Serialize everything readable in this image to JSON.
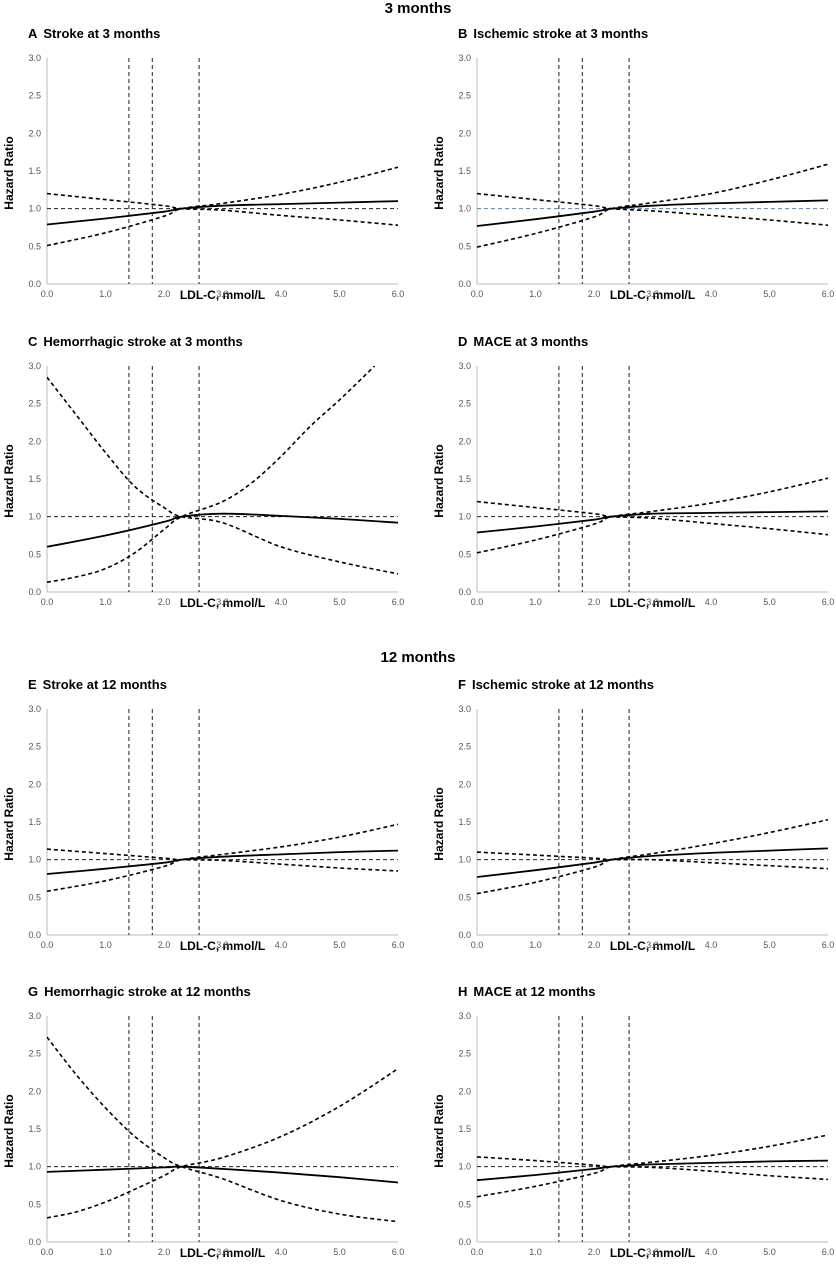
{
  "section_titles": {
    "first": "3 months",
    "second": "12 months"
  },
  "chart_data": [
    {
      "type": "line",
      "panel": "A",
      "title": "Stroke at 3 months",
      "xlabel": "LDL-C, mmol/L",
      "ylabel": "Hazard Ratio",
      "xlim": [
        0,
        6
      ],
      "ylim": [
        0,
        3
      ],
      "xticks": [
        "0.0",
        "1.0",
        "2.0",
        "3.0",
        "4.0",
        "5.0",
        "6.0"
      ],
      "yticks": [
        "0.0",
        "0.5",
        "1.0",
        "1.5",
        "2.0",
        "2.5",
        "3.0"
      ],
      "reference_lines": {
        "vertical": [
          1.4,
          1.8,
          2.6
        ],
        "horizontal": 1.0
      },
      "series": [
        {
          "style": "solid",
          "x": [
            0,
            1,
            2,
            2.3,
            3,
            4,
            5,
            6
          ],
          "y": [
            0.79,
            0.87,
            0.96,
            1.0,
            1.04,
            1.06,
            1.08,
            1.1
          ]
        },
        {
          "style": "dashed",
          "x": [
            0,
            1,
            2,
            2.3,
            3,
            4,
            5,
            6
          ],
          "y": [
            0.51,
            0.68,
            0.9,
            1.0,
            1.07,
            1.19,
            1.35,
            1.55
          ]
        },
        {
          "style": "dashed",
          "x": [
            0,
            1,
            2,
            2.3,
            3,
            4,
            5,
            6
          ],
          "y": [
            1.2,
            1.12,
            1.04,
            1.0,
            0.98,
            0.91,
            0.85,
            0.78
          ]
        }
      ]
    },
    {
      "type": "line",
      "panel": "B",
      "title": "Ischemic stroke at 3 months",
      "xlabel": "LDL-C, mmol/L",
      "ylabel": "Hazard Ratio",
      "xlim": [
        0,
        6
      ],
      "ylim": [
        0,
        3
      ],
      "xticks": [
        "0.0",
        "1.0",
        "2.0",
        "3.0",
        "4.0",
        "5.0",
        "6.0"
      ],
      "yticks": [
        "0.0",
        "0.5",
        "1.0",
        "1.5",
        "2.0",
        "2.5",
        "3.0"
      ],
      "reference_lines": {
        "vertical": [
          1.4,
          1.8,
          2.6
        ],
        "horizontal": 1.0,
        "horizontal_color": "#5b7fb3"
      },
      "series": [
        {
          "style": "solid",
          "x": [
            0,
            1,
            2,
            2.3,
            3,
            4,
            5,
            6
          ],
          "y": [
            0.77,
            0.86,
            0.96,
            1.0,
            1.04,
            1.07,
            1.09,
            1.11
          ]
        },
        {
          "style": "dashed",
          "x": [
            0,
            1,
            2,
            2.3,
            3,
            4,
            5,
            6
          ],
          "y": [
            0.49,
            0.67,
            0.89,
            1.0,
            1.08,
            1.2,
            1.38,
            1.59
          ]
        },
        {
          "style": "dashed",
          "x": [
            0,
            1,
            2,
            2.3,
            3,
            4,
            5,
            6
          ],
          "y": [
            1.2,
            1.12,
            1.04,
            1.0,
            0.97,
            0.91,
            0.85,
            0.78
          ]
        }
      ]
    },
    {
      "type": "line",
      "panel": "C",
      "title": "Hemorrhagic stroke at 3 months",
      "xlabel": "LDL-C, mmol/L",
      "ylabel": "Hazard Ratio",
      "xlim": [
        0,
        6
      ],
      "ylim": [
        0,
        3
      ],
      "xticks": [
        "0.0",
        "1.0",
        "2.0",
        "3.0",
        "4.0",
        "5.0",
        "6.0"
      ],
      "yticks": [
        "0.0",
        "0.5",
        "1.0",
        "1.5",
        "2.0",
        "2.5",
        "3.0"
      ],
      "reference_lines": {
        "vertical": [
          1.4,
          1.8,
          2.6
        ],
        "horizontal": 1.0
      },
      "series": [
        {
          "style": "solid",
          "x": [
            0,
            1,
            2,
            2.3,
            3,
            4,
            5,
            6
          ],
          "y": [
            0.6,
            0.75,
            0.93,
            1.0,
            1.04,
            1.01,
            0.97,
            0.92
          ]
        },
        {
          "style": "dashed",
          "x": [
            0,
            0.5,
            1,
            1.5,
            2,
            2.3,
            3,
            3.5,
            4,
            4.5,
            5,
            5.6
          ],
          "y": [
            0.13,
            0.2,
            0.31,
            0.52,
            0.83,
            1.0,
            1.2,
            1.45,
            1.8,
            2.2,
            2.55,
            3.0
          ]
        },
        {
          "style": "dashed",
          "x": [
            0,
            0.5,
            1,
            1.5,
            2,
            2.3,
            3,
            4,
            5,
            6
          ],
          "y": [
            2.85,
            2.35,
            1.85,
            1.4,
            1.12,
            1.0,
            0.92,
            0.6,
            0.4,
            0.24
          ]
        }
      ]
    },
    {
      "type": "line",
      "panel": "D",
      "title": "MACE at 3 months",
      "xlabel": "LDL-C, mmol/L",
      "ylabel": "Hazard Ratio",
      "xlim": [
        0,
        6
      ],
      "ylim": [
        0,
        3
      ],
      "xticks": [
        "0.0",
        "1.0",
        "2.0",
        "3.0",
        "4.0",
        "5.0",
        "6.0"
      ],
      "yticks": [
        "0.0",
        "0.5",
        "1.0",
        "1.5",
        "2.0",
        "2.5",
        "3.0"
      ],
      "reference_lines": {
        "vertical": [
          1.4,
          1.8,
          2.6
        ],
        "horizontal": 1.0
      },
      "series": [
        {
          "style": "solid",
          "x": [
            0,
            1,
            2,
            2.3,
            3,
            4,
            5,
            6
          ],
          "y": [
            0.79,
            0.87,
            0.96,
            1.0,
            1.04,
            1.05,
            1.06,
            1.07
          ]
        },
        {
          "style": "dashed",
          "x": [
            0,
            1,
            2,
            2.3,
            3,
            4,
            5,
            6
          ],
          "y": [
            0.52,
            0.69,
            0.9,
            1.0,
            1.07,
            1.18,
            1.33,
            1.51
          ]
        },
        {
          "style": "dashed",
          "x": [
            0,
            1,
            2,
            2.3,
            3,
            4,
            5,
            6
          ],
          "y": [
            1.2,
            1.12,
            1.04,
            1.0,
            0.98,
            0.91,
            0.84,
            0.76
          ]
        }
      ]
    },
    {
      "type": "line",
      "panel": "E",
      "title": "Stroke at 12 months",
      "xlabel": "LDL-C, mmol/L",
      "ylabel": "Hazard Ratio",
      "xlim": [
        0,
        6
      ],
      "ylim": [
        0,
        3
      ],
      "xticks": [
        "0.0",
        "1.0",
        "2.0",
        "3.0",
        "4.0",
        "5.0",
        "6.0"
      ],
      "yticks": [
        "0.0",
        "0.5",
        "1.0",
        "1.5",
        "2.0",
        "2.5",
        "3.0"
      ],
      "reference_lines": {
        "vertical": [
          1.4,
          1.8,
          2.6
        ],
        "horizontal": 1.0
      },
      "series": [
        {
          "style": "solid",
          "x": [
            0,
            1,
            2,
            2.3,
            3,
            4,
            5,
            6
          ],
          "y": [
            0.81,
            0.88,
            0.96,
            1.0,
            1.04,
            1.07,
            1.1,
            1.12
          ]
        },
        {
          "style": "dashed",
          "x": [
            0,
            1,
            2,
            2.3,
            3,
            4,
            5,
            6
          ],
          "y": [
            0.58,
            0.72,
            0.91,
            1.0,
            1.07,
            1.17,
            1.3,
            1.47
          ]
        },
        {
          "style": "dashed",
          "x": [
            0,
            1,
            2,
            2.3,
            3,
            4,
            5,
            6
          ],
          "y": [
            1.14,
            1.08,
            1.02,
            1.0,
            0.99,
            0.94,
            0.89,
            0.85
          ]
        }
      ]
    },
    {
      "type": "line",
      "panel": "F",
      "title": "Ischemic stroke at 12 months",
      "xlabel": "LDL-C, mmol/L",
      "ylabel": "Hazard Ratio",
      "xlim": [
        0,
        6
      ],
      "ylim": [
        0,
        3
      ],
      "xticks": [
        "0.0",
        "1.0",
        "2.0",
        "3.0",
        "4.0",
        "5.0",
        "6.0"
      ],
      "yticks": [
        "0.0",
        "0.5",
        "1.0",
        "1.5",
        "2.0",
        "2.5",
        "3.0"
      ],
      "reference_lines": {
        "vertical": [
          1.4,
          1.8,
          2.6
        ],
        "horizontal": 1.0
      },
      "series": [
        {
          "style": "solid",
          "x": [
            0,
            1,
            2,
            2.3,
            3,
            4,
            5,
            6
          ],
          "y": [
            0.77,
            0.86,
            0.96,
            1.0,
            1.05,
            1.09,
            1.12,
            1.15
          ]
        },
        {
          "style": "dashed",
          "x": [
            0,
            1,
            2,
            2.3,
            3,
            4,
            5,
            6
          ],
          "y": [
            0.55,
            0.7,
            0.9,
            1.0,
            1.08,
            1.21,
            1.36,
            1.53
          ]
        },
        {
          "style": "dashed",
          "x": [
            0,
            1,
            2,
            2.3,
            3,
            4,
            5,
            6
          ],
          "y": [
            1.1,
            1.06,
            1.02,
            1.0,
            1.0,
            0.96,
            0.92,
            0.88
          ]
        }
      ]
    },
    {
      "type": "line",
      "panel": "G",
      "title": "Hemorrhagic stroke at 12 months",
      "xlabel": "LDL-C, mmol/L",
      "ylabel": "Hazard Ratio",
      "xlim": [
        0,
        6
      ],
      "ylim": [
        0,
        3
      ],
      "xticks": [
        "0.0",
        "1.0",
        "2.0",
        "3.0",
        "4.0",
        "5.0",
        "6.0"
      ],
      "yticks": [
        "0.0",
        "0.5",
        "1.0",
        "1.5",
        "2.0",
        "2.5",
        "3.0"
      ],
      "reference_lines": {
        "vertical": [
          1.4,
          1.8,
          2.6
        ],
        "horizontal": 1.0
      },
      "series": [
        {
          "style": "solid",
          "x": [
            0,
            1,
            2,
            2.3,
            3,
            4,
            5,
            6
          ],
          "y": [
            0.93,
            0.96,
            0.99,
            1.0,
            0.97,
            0.92,
            0.86,
            0.79
          ]
        },
        {
          "style": "dashed",
          "x": [
            0,
            0.5,
            1,
            1.5,
            2,
            2.3,
            3,
            4,
            5,
            6
          ],
          "y": [
            0.32,
            0.4,
            0.53,
            0.7,
            0.88,
            1.0,
            1.12,
            1.4,
            1.8,
            2.3
          ]
        },
        {
          "style": "dashed",
          "x": [
            0,
            0.5,
            1,
            1.5,
            2,
            2.3,
            3,
            4,
            5,
            6
          ],
          "y": [
            2.72,
            2.22,
            1.78,
            1.4,
            1.12,
            1.0,
            0.84,
            0.55,
            0.37,
            0.27
          ]
        }
      ]
    },
    {
      "type": "line",
      "panel": "H",
      "title": "MACE at 12 months",
      "xlabel": "LDL-C, mmol/L",
      "ylabel": "Hazard Ratio",
      "xlim": [
        0,
        6
      ],
      "ylim": [
        0,
        3
      ],
      "xticks": [
        "0.0",
        "1.0",
        "2.0",
        "3.0",
        "4.0",
        "5.0",
        "6.0"
      ],
      "yticks": [
        "0.0",
        "0.5",
        "1.0",
        "1.5",
        "2.0",
        "2.5",
        "3.0"
      ],
      "reference_lines": {
        "vertical": [
          1.4,
          1.8,
          2.6
        ],
        "horizontal": 1.0
      },
      "series": [
        {
          "style": "solid",
          "x": [
            0,
            1,
            2,
            2.3,
            3,
            4,
            5,
            6
          ],
          "y": [
            0.82,
            0.89,
            0.97,
            1.0,
            1.03,
            1.05,
            1.07,
            1.08
          ]
        },
        {
          "style": "dashed",
          "x": [
            0,
            1,
            2,
            2.3,
            3,
            4,
            5,
            6
          ],
          "y": [
            0.6,
            0.74,
            0.91,
            1.0,
            1.06,
            1.15,
            1.27,
            1.42
          ]
        },
        {
          "style": "dashed",
          "x": [
            0,
            1,
            2,
            2.3,
            3,
            4,
            5,
            6
          ],
          "y": [
            1.13,
            1.08,
            1.02,
            1.0,
            0.99,
            0.94,
            0.88,
            0.83
          ]
        }
      ]
    }
  ]
}
